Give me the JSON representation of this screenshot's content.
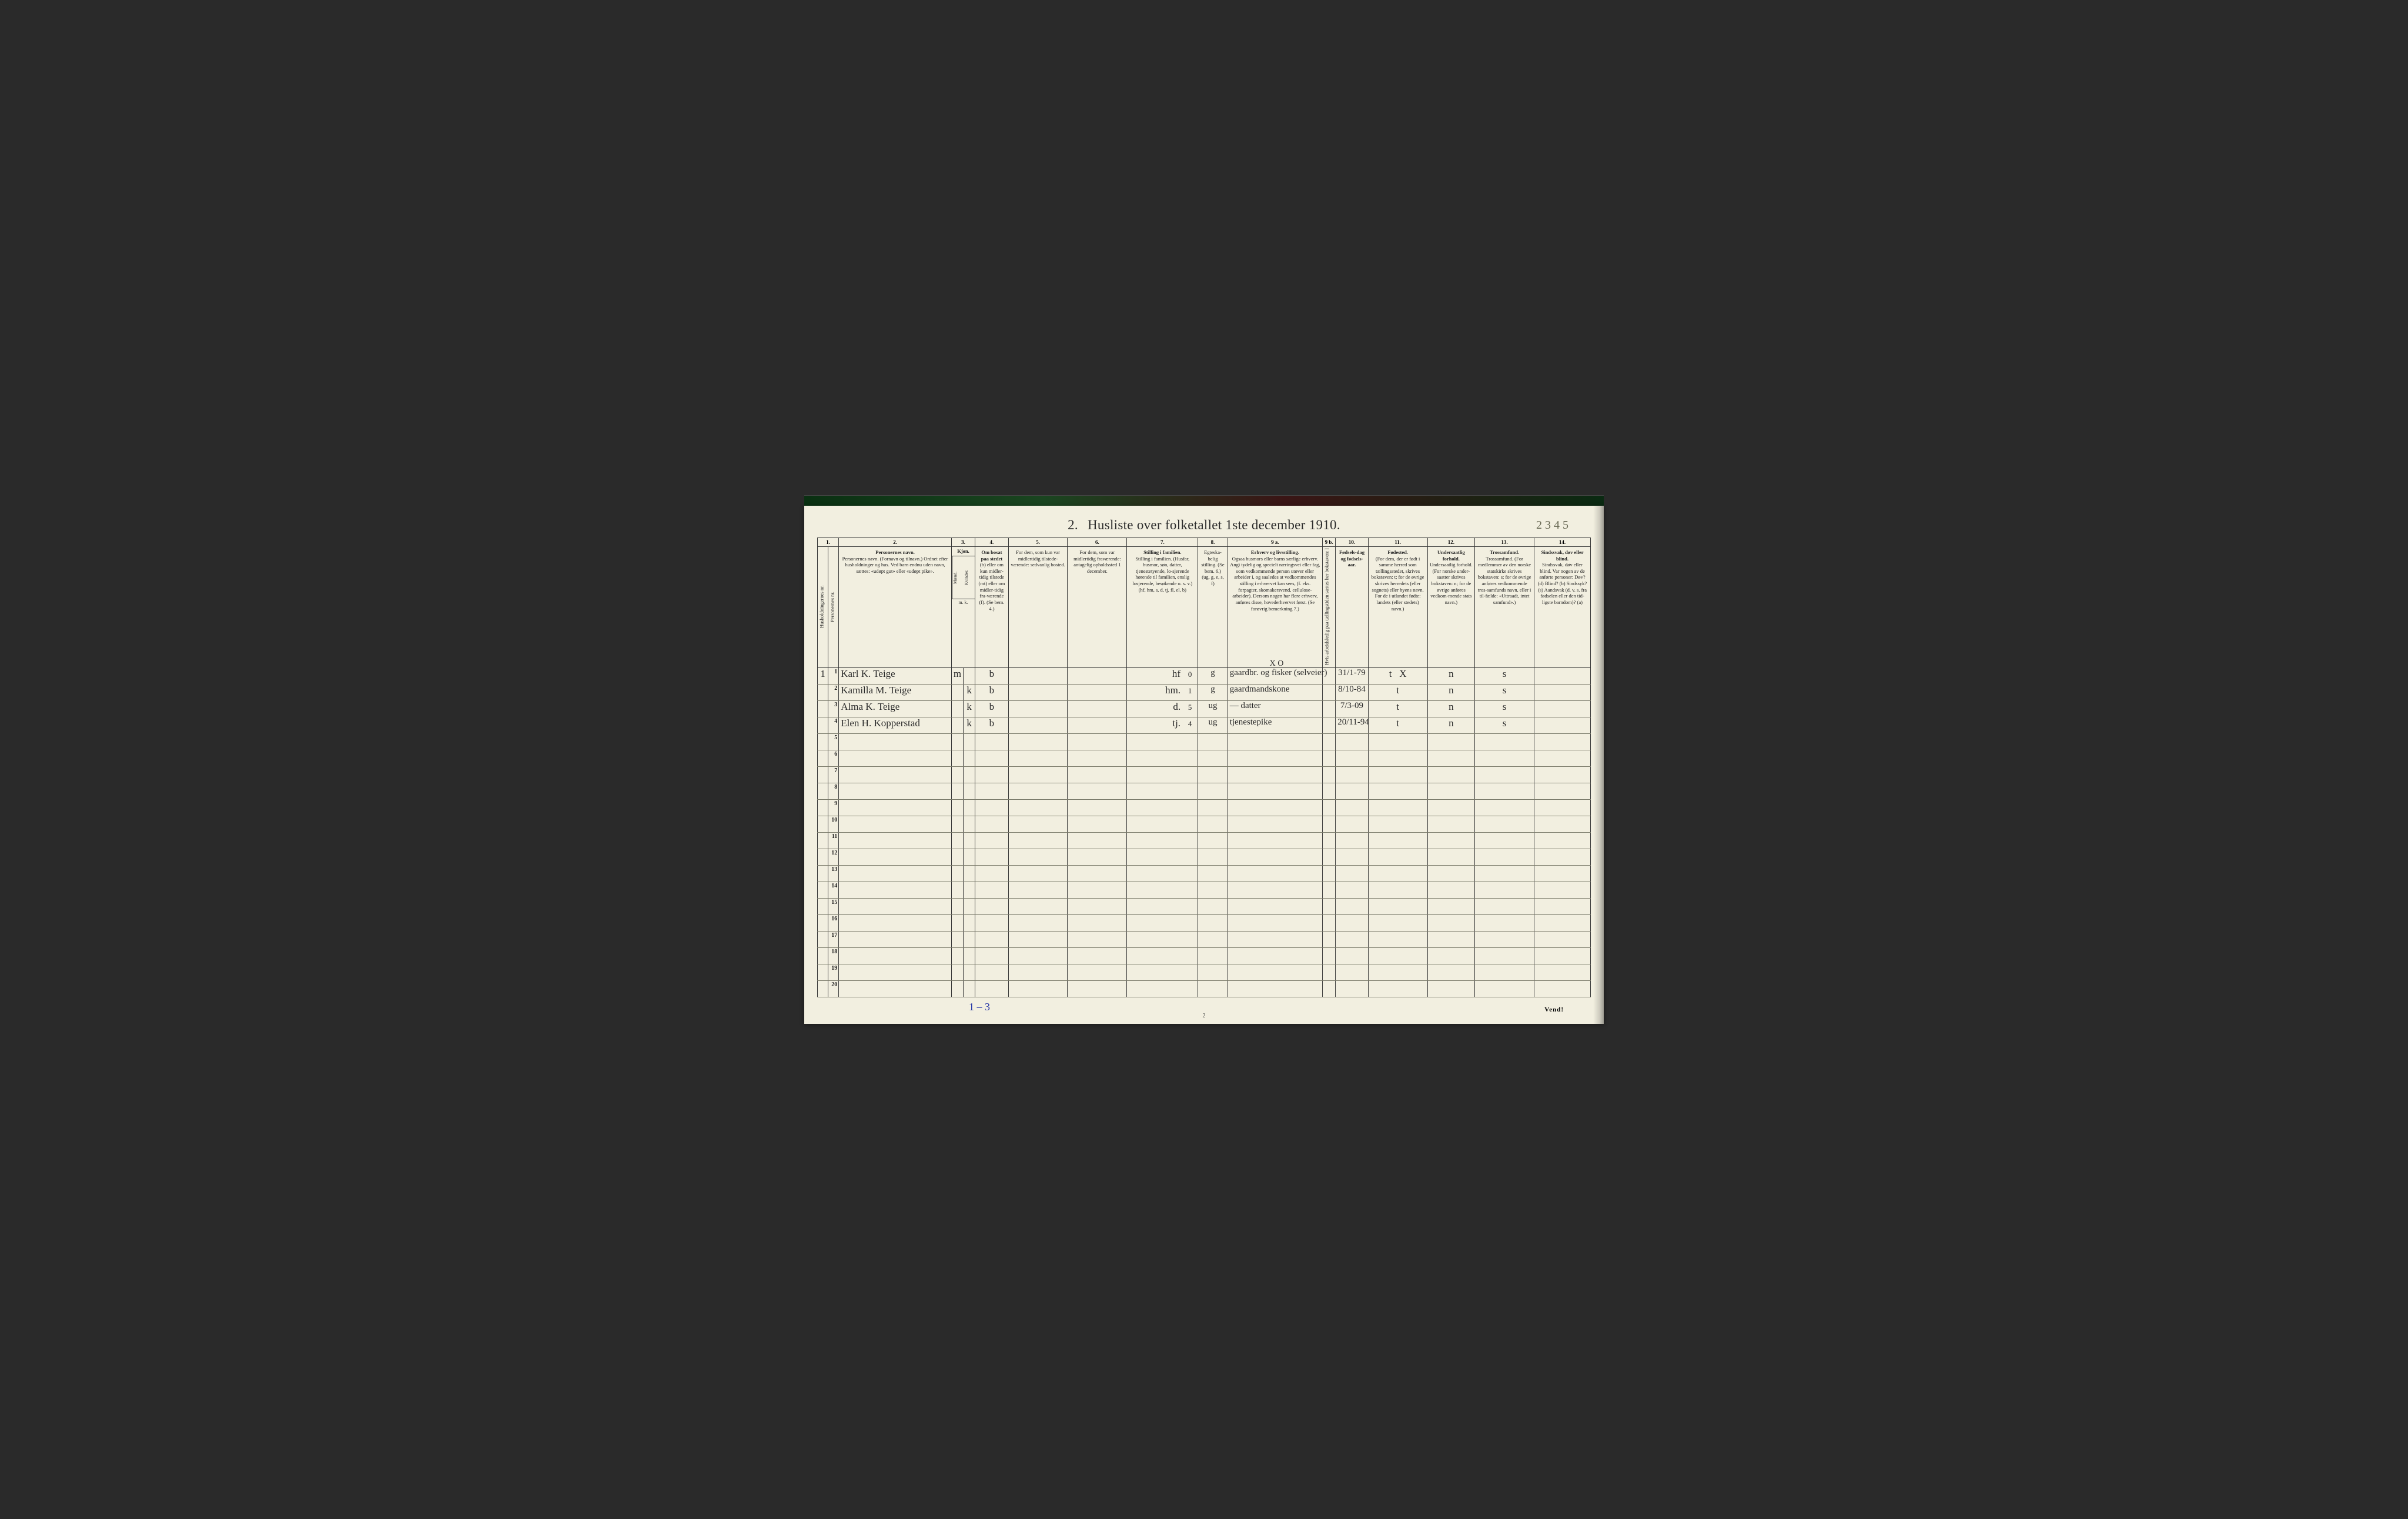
{
  "title": {
    "num": "2.",
    "text": "Husliste over folketallet 1ste december 1910."
  },
  "margin_note": "2 3 4 5",
  "foot": {
    "blue": "1 – 3",
    "page_num": "2",
    "vend": "Vend!"
  },
  "annot_over_9a": "X O",
  "colors": {
    "paper": "#f2efe0",
    "ink": "#2a2a2a",
    "rule_strong": "#3a3a3a",
    "rule_light": "#7a7a6a",
    "handwriting": "#2a2a2a",
    "blue_pencil": "#2a3aa8",
    "page_bg": "#2a2a2a"
  },
  "column_numbers": [
    "1.",
    "2.",
    "3.",
    "4.",
    "5.",
    "6.",
    "7.",
    "8.",
    "9 a.",
    "9 b.",
    "10.",
    "11.",
    "12.",
    "13.",
    "14."
  ],
  "headers": {
    "c1": "Husholdningernes nr.",
    "c1b": "Personernes nr.",
    "c2": "Personernes navn.\n(Fornavn og tilnavn.)\nOrdnet efter husholdninger og hus.\nVed barn endnu uden navn, sættes: «udøpt gut» eller «udøpt pike».",
    "c3": "Kjøn.",
    "c3a": "Mænd.",
    "c3b": "Kvinder.",
    "c3foot": "m.  k.",
    "c4_title": "Om bosat paa stedet",
    "c4": "(b) eller om kun midler-tidig tilstede (mt) eller om midler-tidig fra-værende (f).\n(Se bem. 4.)",
    "c5": "For dem, som kun var midlertidig tilstede-værende:\nsedvanlig bosted.",
    "c6": "For dem, som var midlertidig fraværende:\nantagelig opholdssted 1 december.",
    "c7": "Stilling i familien.\n(Husfar, husmor, søn, datter, tjenestetyende, lo-sjerende hørende til familien, enslig losjerende, besøkende o. s. v.)\n(hf, hm, s, d, tj, fl, el, b)",
    "c8": "Egteska-belig stilling.\n(Se bem. 6.)\n(ug, g, e, s, f)",
    "c9a_title": "Erhverv og livsstilling.",
    "c9a": "Ogsaa husmors eller barns særlige erhverv. Angi tydelig og specielt næringsvei eller fag, som vedkommende person utøver eller arbeider i, og saaledes at vedkommendes stilling i erhvervet kan sees, (f. eks. forpagter, skomakersvend, cellulose-arbeider). Dersom nogen har flere erhverv, anføres disse, hovederhvervet først.\n(Se forøvrig bemerkning 7.)",
    "c9b": "Hvis arbeidsledig paa tællingstiden sættes her bokstaven: l",
    "c10": "Fødsels-dag og fødsels-aar.",
    "c11_title": "Fødested.",
    "c11": "(For dem, der er født i samme herred som tællingsstedet, skrives bokstaven: t; for de øvrige skrives herredets (eller sognets) eller byens navn. For de i utlandet fødte: landets (eller stedets) navn.)",
    "c12": "Undersaatlig forhold.\n(For norske under-saatter skrives bokstaven: n; for de øvrige anføres vedkom-mende stats navn.)",
    "c13": "Trossamfund.\n(For medlemmer av den norske statskirke skrives bokstaven: s; for de øvrige anføres vedkommende tros-samfunds navn, eller i til-fælde: «Uttraadt, intet samfund».)",
    "c14": "Sindssvak, døv eller blind.\nVar nogen av de anførte personer:\nDøv?      (d)\nBlind?    (b)\nSindssyk? (s)\nAandsvak (d. v. s. fra fødselen eller den tid-ligste barndom)? (a)"
  },
  "rows": [
    {
      "hh": "1",
      "pn": "1",
      "name": "Karl K. Teige",
      "m": "m",
      "k": "",
      "bosat": "b",
      "c5": "",
      "c6": "",
      "fam": "hf",
      "famnum": "0",
      "egte": "g",
      "erhverv": "gaardbr. og fisker (selveier)",
      "c9b": "",
      "dob": "31/1-79",
      "fsted": "t",
      "fsted2": "X",
      "und": "n",
      "tro": "s",
      "c14": ""
    },
    {
      "hh": "",
      "pn": "2",
      "name": "Kamilla M. Teige",
      "m": "",
      "k": "k",
      "bosat": "b",
      "c5": "",
      "c6": "",
      "fam": "hm.",
      "famnum": "1",
      "egte": "g",
      "erhverv": "gaardmandskone",
      "c9b": "",
      "dob": "8/10-84",
      "fsted": "t",
      "fsted2": "",
      "und": "n",
      "tro": "s",
      "c14": ""
    },
    {
      "hh": "",
      "pn": "3",
      "name": "Alma K. Teige",
      "m": "",
      "k": "k",
      "bosat": "b",
      "c5": "",
      "c6": "",
      "fam": "d.",
      "famnum": "5",
      "egte": "ug",
      "erhverv": "— datter",
      "c9b": "",
      "dob": "7/3-09",
      "fsted": "t",
      "fsted2": "",
      "und": "n",
      "tro": "s",
      "c14": ""
    },
    {
      "hh": "",
      "pn": "4",
      "name": "Elen H. Kopperstad",
      "m": "",
      "k": "k",
      "bosat": "b",
      "c5": "",
      "c6": "",
      "fam": "tj.",
      "famnum": "4",
      "egte": "ug",
      "erhverv": "tjenestepike",
      "c9b": "",
      "dob": "20/11-94",
      "fsted": "t",
      "fsted2": "",
      "und": "n",
      "tro": "s",
      "c14": ""
    }
  ],
  "row_numbers": [
    1,
    2,
    3,
    4,
    5,
    6,
    7,
    8,
    9,
    10,
    11,
    12,
    13,
    14,
    15,
    16,
    17,
    18,
    19,
    20
  ]
}
